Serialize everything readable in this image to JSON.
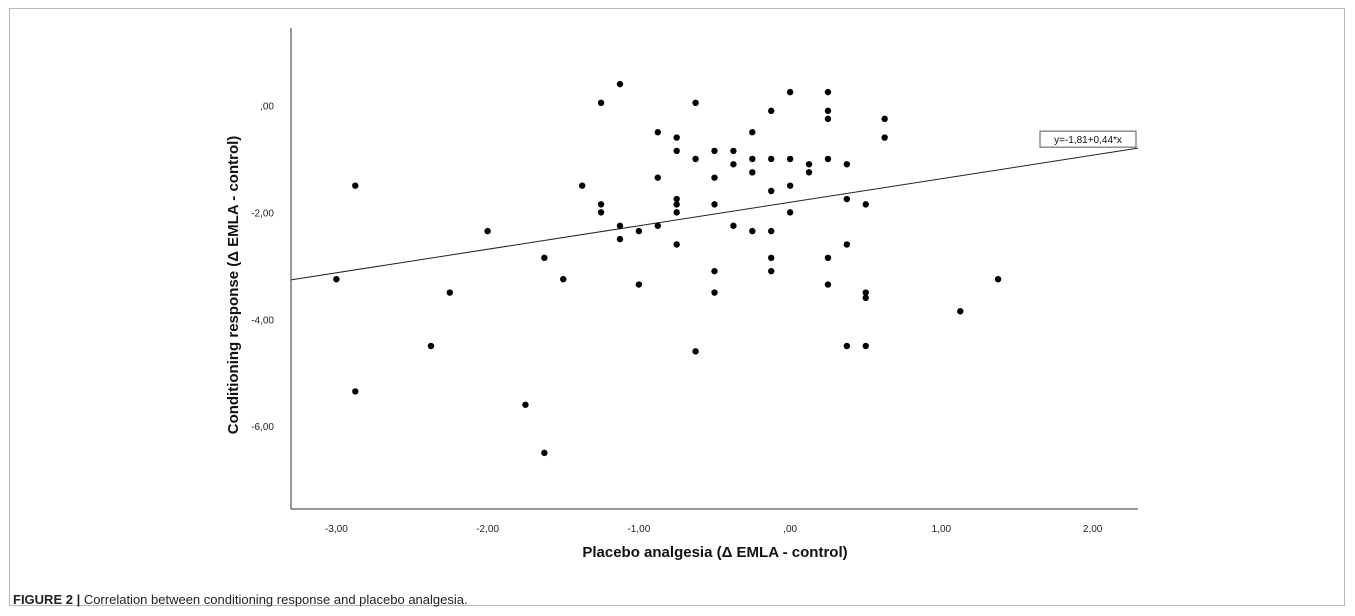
{
  "chart_data": {
    "type": "scatter",
    "xlabel": "Placebo analgesia (Δ EMLA - control)",
    "ylabel": "Conditioning response (Δ EMLA - control)",
    "xlim": [
      -3.3,
      2.3
    ],
    "ylim": [
      -7.55,
      1.45
    ],
    "x_ticks": [
      -3,
      -2,
      -1,
      0,
      1,
      2
    ],
    "x_tick_labels": [
      "-3,00",
      "-2,00",
      "-1,00",
      ",00",
      "1,00",
      "2,00"
    ],
    "y_ticks": [
      0,
      -2,
      -4,
      -6
    ],
    "y_tick_labels": [
      ",00",
      "-2,00",
      "-4,00",
      "-6,00"
    ],
    "grid": false,
    "fit_line": {
      "intercept": -1.81,
      "slope": 0.44,
      "label": "y=-1,81+0,44*x"
    },
    "points": [
      {
        "x": -3.0,
        "y": -3.25
      },
      {
        "x": -2.875,
        "y": -1.5
      },
      {
        "x": -2.875,
        "y": -5.35
      },
      {
        "x": -2.375,
        "y": -4.5
      },
      {
        "x": -2.25,
        "y": -3.5
      },
      {
        "x": -2.0,
        "y": -2.35
      },
      {
        "x": -1.75,
        "y": -5.6
      },
      {
        "x": -1.625,
        "y": -2.85
      },
      {
        "x": -1.625,
        "y": -6.5
      },
      {
        "x": -1.5,
        "y": -3.25
      },
      {
        "x": -1.375,
        "y": -1.5
      },
      {
        "x": -1.25,
        "y": 0.05
      },
      {
        "x": -1.25,
        "y": -1.85
      },
      {
        "x": -1.25,
        "y": -2.0
      },
      {
        "x": -1.125,
        "y": 0.4
      },
      {
        "x": -1.125,
        "y": -2.25
      },
      {
        "x": -1.125,
        "y": -2.5
      },
      {
        "x": -1.0,
        "y": -2.35
      },
      {
        "x": -1.0,
        "y": -3.35
      },
      {
        "x": -0.875,
        "y": -0.5
      },
      {
        "x": -0.875,
        "y": -1.35
      },
      {
        "x": -0.875,
        "y": -2.25
      },
      {
        "x": -0.75,
        "y": -0.6
      },
      {
        "x": -0.75,
        "y": -0.85
      },
      {
        "x": -0.75,
        "y": -1.75
      },
      {
        "x": -0.75,
        "y": -1.85
      },
      {
        "x": -0.75,
        "y": -2.0
      },
      {
        "x": -0.75,
        "y": -2.6
      },
      {
        "x": -0.625,
        "y": 0.05
      },
      {
        "x": -0.625,
        "y": -1.0
      },
      {
        "x": -0.625,
        "y": -4.6
      },
      {
        "x": -0.5,
        "y": -0.85
      },
      {
        "x": -0.5,
        "y": -1.35
      },
      {
        "x": -0.5,
        "y": -1.85
      },
      {
        "x": -0.5,
        "y": -3.1
      },
      {
        "x": -0.5,
        "y": -3.5
      },
      {
        "x": -0.375,
        "y": -0.85
      },
      {
        "x": -0.375,
        "y": -1.1
      },
      {
        "x": -0.375,
        "y": -2.25
      },
      {
        "x": -0.25,
        "y": -0.5
      },
      {
        "x": -0.25,
        "y": -1.0
      },
      {
        "x": -0.25,
        "y": -1.25
      },
      {
        "x": -0.25,
        "y": -2.35
      },
      {
        "x": -0.125,
        "y": -0.1
      },
      {
        "x": -0.125,
        "y": -1.0
      },
      {
        "x": -0.125,
        "y": -1.6
      },
      {
        "x": -0.125,
        "y": -2.35
      },
      {
        "x": -0.125,
        "y": -2.85
      },
      {
        "x": -0.125,
        "y": -3.1
      },
      {
        "x": 0.0,
        "y": 0.25
      },
      {
        "x": 0.0,
        "y": -1.0
      },
      {
        "x": 0.0,
        "y": -1.5
      },
      {
        "x": 0.0,
        "y": -2.0
      },
      {
        "x": 0.125,
        "y": -1.1
      },
      {
        "x": 0.125,
        "y": -1.25
      },
      {
        "x": 0.25,
        "y": 0.25
      },
      {
        "x": 0.25,
        "y": -0.1
      },
      {
        "x": 0.25,
        "y": -0.25
      },
      {
        "x": 0.25,
        "y": -1.0
      },
      {
        "x": 0.25,
        "y": -2.85
      },
      {
        "x": 0.25,
        "y": -3.35
      },
      {
        "x": 0.375,
        "y": -1.1
      },
      {
        "x": 0.375,
        "y": -1.75
      },
      {
        "x": 0.375,
        "y": -2.6
      },
      {
        "x": 0.375,
        "y": -4.5
      },
      {
        "x": 0.5,
        "y": -1.85
      },
      {
        "x": 0.5,
        "y": -3.5
      },
      {
        "x": 0.5,
        "y": -3.6
      },
      {
        "x": 0.5,
        "y": -4.5
      },
      {
        "x": 0.625,
        "y": -0.25
      },
      {
        "x": 0.625,
        "y": -0.6
      },
      {
        "x": 1.125,
        "y": -3.85
      },
      {
        "x": 1.375,
        "y": -3.25
      }
    ]
  },
  "caption": {
    "label": "FIGURE 2 |",
    "text": " Correlation between conditioning response and placebo analgesia."
  }
}
